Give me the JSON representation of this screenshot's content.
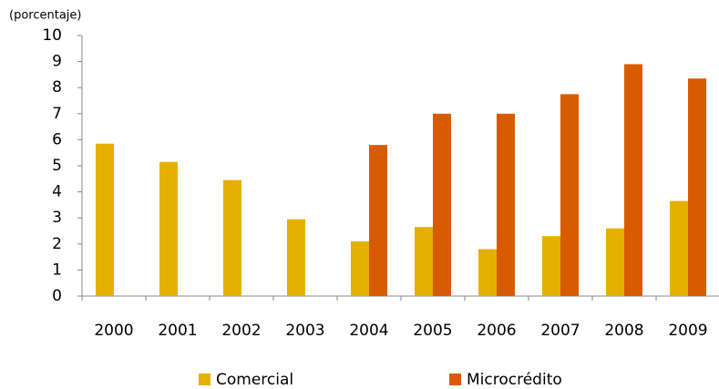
{
  "chart_data": {
    "type": "bar",
    "y_label": "(porcentaje)",
    "categories": [
      "2000",
      "2001",
      "2002",
      "2003",
      "2004",
      "2005",
      "2006",
      "2007",
      "2008",
      "2009"
    ],
    "series": [
      {
        "name": "Comercial",
        "color": "#e6b000",
        "values": [
          5.85,
          5.15,
          4.45,
          2.95,
          2.1,
          2.65,
          1.8,
          2.3,
          2.6,
          3.65
        ]
      },
      {
        "name": "Microcrédito",
        "color": "#d95b00",
        "values": [
          null,
          null,
          null,
          null,
          5.8,
          7.0,
          7.0,
          7.75,
          8.9,
          8.35
        ]
      }
    ],
    "ylim": [
      0,
      10
    ],
    "yticks": [
      0,
      1,
      2,
      3,
      4,
      5,
      6,
      7,
      8,
      9,
      10
    ],
    "legend": "bottom"
  }
}
